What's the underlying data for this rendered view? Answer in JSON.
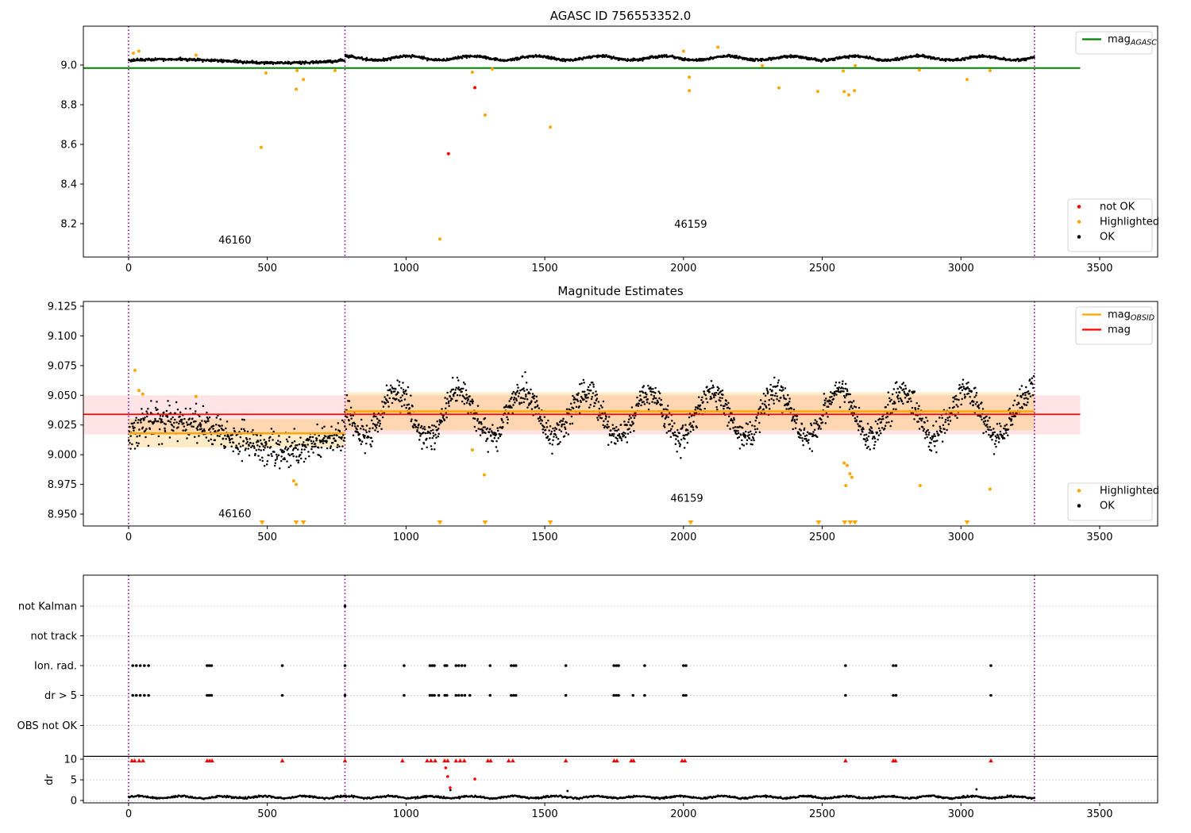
{
  "figure_title": "AGASC ID 756553352.0",
  "colors": {
    "ok": "#000000",
    "highlighted": "#ffa500",
    "not_ok": "#ff0000",
    "mag_agasc_line": "#008000",
    "mag_line": "#ff0000",
    "mag_obsid_line": "#ffa500",
    "obsid_vline": "#8f008f",
    "grid": "#c8c8c8",
    "mag_band": "rgba(255,0,0,0.10)",
    "obsid_band": "rgba(255,165,0,0.22)"
  },
  "chart_data": [
    {
      "id": "agasc_mags",
      "type": "scatter",
      "title": "AGASC ID 756553352.0",
      "xlim": [
        -163,
        3709
      ],
      "ylim": [
        8.032,
        9.196
      ],
      "xticks": [
        0,
        500,
        1000,
        1500,
        2000,
        2500,
        3000,
        3500
      ],
      "yticks": [
        8.2,
        8.4,
        8.6,
        8.8,
        9.0
      ],
      "ytick_decimals": 1,
      "hline": {
        "y": 8.985,
        "x_start": -163,
        "x_end": 3430,
        "label": "mag",
        "label_sub": "AGASC"
      },
      "vlines": [
        0,
        780,
        3265
      ],
      "annotations": [
        {
          "text": "46160",
          "x": 383,
          "y": 8.1
        },
        {
          "text": "46159",
          "x": 2026,
          "y": 8.18
        }
      ],
      "legend_lines": [
        {
          "label": "mag",
          "sub": "AGASC",
          "color": "#008000"
        }
      ],
      "legend_markers": [
        {
          "label": "not OK",
          "color": "#ff0000"
        },
        {
          "label": "Highlighted",
          "color": "#ffa500"
        },
        {
          "label": "OK",
          "color": "#000000"
        }
      ],
      "ok_series_segments": [
        {
          "x0": 0,
          "x1": 780,
          "n": 430,
          "base": 9.02,
          "amp": 0.009,
          "period": 800,
          "phase": -50,
          "noise": 0.0065
        },
        {
          "x0": 780,
          "x1": 3265,
          "n": 1400,
          "base": 9.035,
          "amp": 0.01,
          "period": 230,
          "phase": 720,
          "noise": 0.0065
        }
      ],
      "ok_ymin": 8.99,
      "highlighted_points": [
        [
          17,
          9.06
        ],
        [
          37,
          9.07
        ],
        [
          243,
          9.05
        ],
        [
          2000,
          9.07
        ],
        [
          2124,
          9.09
        ],
        [
          478,
          8.585
        ],
        [
          495,
          8.96
        ],
        [
          604,
          8.878
        ],
        [
          607,
          8.972
        ],
        [
          630,
          8.927
        ],
        [
          744,
          8.972
        ],
        [
          1122,
          8.123
        ],
        [
          1239,
          8.964
        ],
        [
          1285,
          8.748
        ],
        [
          1311,
          8.98
        ],
        [
          1520,
          8.687
        ],
        [
          2021,
          8.939
        ],
        [
          2021,
          8.871
        ],
        [
          2284,
          8.997
        ],
        [
          2344,
          8.885
        ],
        [
          2484,
          8.867
        ],
        [
          2579,
          8.866
        ],
        [
          2596,
          8.85
        ],
        [
          2616,
          8.871
        ],
        [
          2576,
          8.97
        ],
        [
          2619,
          8.997
        ],
        [
          2850,
          8.975
        ],
        [
          3022,
          8.927
        ],
        [
          3105,
          8.972
        ]
      ],
      "not_ok_points": [
        [
          1153,
          8.553
        ],
        [
          1248,
          8.886
        ]
      ]
    },
    {
      "id": "magnitude_estimates",
      "type": "scatter",
      "title": "Magnitude Estimates",
      "xlim": [
        -163,
        3709
      ],
      "ylim": [
        8.94,
        9.129
      ],
      "xticks": [
        0,
        500,
        1000,
        1500,
        2000,
        2500,
        3000,
        3500
      ],
      "yticks": [
        8.95,
        8.975,
        9.0,
        9.025,
        9.05,
        9.075,
        9.1,
        9.125
      ],
      "ytick_decimals": 3,
      "mag_line": {
        "y": 9.034,
        "x_start": -163,
        "x_end": 3430,
        "band": [
          9.017,
          9.05
        ],
        "label": "mag"
      },
      "obsid_segments": [
        {
          "x0": 0,
          "x1": 780,
          "y": 9.018,
          "band": [
            9.006,
            9.03
          ]
        },
        {
          "x0": 780,
          "x1": 3265,
          "y": 9.0365,
          "band": [
            9.0205,
            9.0525
          ]
        }
      ],
      "obsid_label": {
        "label": "mag",
        "sub": "OBSID"
      },
      "vlines": [
        0,
        780,
        3265
      ],
      "annotations": [
        {
          "text": "46160",
          "x": 383,
          "y": 8.9475
        },
        {
          "text": "46159",
          "x": 2012,
          "y": 8.9605
        }
      ],
      "legend_lines": [
        {
          "label": "mag",
          "sub": "OBSID",
          "color": "#ffa500"
        },
        {
          "label": "mag",
          "sub": "",
          "color": "#ff0000"
        }
      ],
      "legend_markers": [
        {
          "label": "Highlighted",
          "color": "#ffa500"
        },
        {
          "label": "OK",
          "color": "#000000"
        }
      ],
      "ok_series_segments": [
        {
          "x0": 0,
          "x1": 780,
          "n": 520,
          "base": 9.016,
          "amp": 0.012,
          "period": 800,
          "phase": -50,
          "noise": 0.015
        },
        {
          "x0": 780,
          "x1": 3265,
          "n": 1650,
          "base": 9.034,
          "amp": 0.019,
          "period": 228,
          "phase": 680,
          "noise": 0.012
        }
      ],
      "ok_ymin": 8.952,
      "highlighted_points": [
        [
          23,
          9.071
        ],
        [
          37,
          9.054
        ],
        [
          51,
          9.051
        ],
        [
          243,
          9.049
        ],
        [
          595,
          8.978
        ],
        [
          604,
          8.975
        ],
        [
          1239,
          9.004
        ],
        [
          1282,
          8.983
        ],
        [
          2579,
          8.993
        ],
        [
          2590,
          8.991
        ],
        [
          2600,
          8.984
        ],
        [
          2607,
          8.981
        ],
        [
          2585,
          8.974
        ],
        [
          2853,
          8.974
        ],
        [
          3105,
          8.971
        ]
      ],
      "highlighted_clipped_x": [
        481,
        604,
        630,
        1122,
        1285,
        1520,
        2026,
        2487,
        2581,
        2601,
        2618,
        3022
      ]
    },
    {
      "id": "flags_dr",
      "type": "scatter",
      "xlim": [
        -163,
        3709
      ],
      "xticks": [
        0,
        500,
        1000,
        1500,
        2000,
        2500,
        3000,
        3500
      ],
      "rows": [
        {
          "label": "not Kalman",
          "x": [
            780
          ]
        },
        {
          "label": "not track",
          "x": []
        },
        {
          "label": "Ion. rad.",
          "x": [
            15,
            28,
            42,
            57,
            72,
            283,
            291,
            299,
            554,
            780,
            993,
            1086,
            1094,
            1102,
            1140,
            1147,
            1180,
            1190,
            1201,
            1212,
            1303,
            1379,
            1388,
            1396,
            1576,
            1749,
            1758,
            1766,
            1860,
            2000,
            2009,
            2584,
            2756,
            2766,
            3108
          ]
        },
        {
          "label": "dr > 5",
          "x": [
            15,
            28,
            42,
            57,
            72,
            283,
            291,
            299,
            554,
            780,
            993,
            1086,
            1094,
            1102,
            1118,
            1140,
            1147,
            1180,
            1190,
            1201,
            1212,
            1230,
            1303,
            1379,
            1388,
            1396,
            1576,
            1749,
            1758,
            1766,
            1818,
            1860,
            2000,
            2009,
            2584,
            2756,
            2766,
            3108
          ]
        },
        {
          "label": "OBS not OK",
          "x": []
        }
      ],
      "dr_axis_label": "dr",
      "dr_ticks": [
        0,
        5,
        10
      ],
      "dr_hline": 10.7,
      "dr_red_clipped_x": [
        12,
        22,
        38,
        52,
        283,
        292,
        301,
        554,
        780,
        987,
        1076,
        1090,
        1105,
        1139,
        1150,
        1180,
        1195,
        1210,
        1295,
        1305,
        1370,
        1385,
        1576,
        1750,
        1760,
        1812,
        1820,
        1995,
        2005,
        2584,
        2756,
        2764,
        3108
      ],
      "dr_red_points": [
        [
          1143,
          7.9
        ],
        [
          1150,
          5.8
        ],
        [
          1248,
          5.2
        ],
        [
          1159,
          3.1
        ]
      ],
      "dr_black_extra": [
        [
          1160,
          2.5
        ],
        [
          1582,
          2.3
        ],
        [
          3056,
          2.7
        ]
      ],
      "dr_series": {
        "x0": 0,
        "x1": 3265,
        "n": 1350,
        "base": 0.8,
        "amp": 0.25,
        "period": 150,
        "phase": 0,
        "noise": 0.22,
        "min": 0.08,
        "max": 2.6
      },
      "vlines": [
        0,
        780,
        3265
      ]
    }
  ]
}
